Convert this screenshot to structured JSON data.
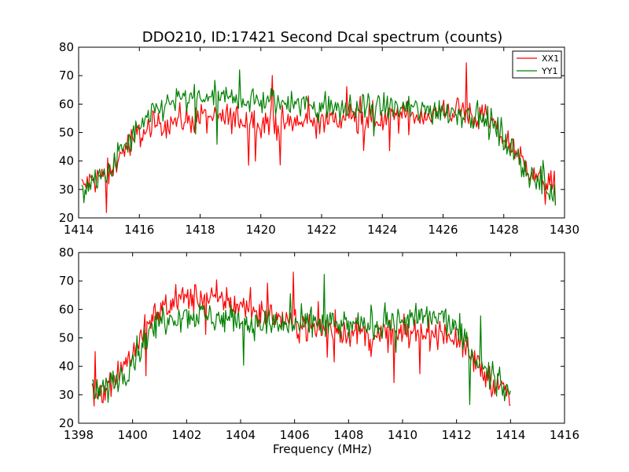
{
  "chart_data": [
    {
      "type": "line",
      "title": "DDO210, ID:17421 Second Dcal spectrum (counts)",
      "xlabel": "",
      "ylabel": "",
      "xlim": [
        1414,
        1430
      ],
      "ylim": [
        20,
        80
      ],
      "xticks": [
        1414,
        1416,
        1418,
        1420,
        1422,
        1424,
        1426,
        1428,
        1430
      ],
      "yticks": [
        20,
        30,
        40,
        50,
        60,
        70,
        80
      ],
      "legend": "top-right",
      "series": [
        {
          "name": "XX1",
          "color": "#ff0000",
          "x": [
            1414.1,
            1414.5,
            1415.0,
            1415.5,
            1416.0,
            1416.5,
            1417.0,
            1418.0,
            1419.0,
            1420.0,
            1421.0,
            1422.0,
            1423.0,
            1424.0,
            1425.0,
            1426.0,
            1426.5,
            1427.0,
            1427.5,
            1428.0,
            1428.5,
            1429.0,
            1429.7
          ],
          "y": [
            31,
            33,
            36,
            44,
            50,
            52,
            54,
            55,
            55,
            54,
            53,
            54,
            55,
            55,
            56,
            57,
            58,
            56,
            54,
            48,
            42,
            35,
            30
          ]
        },
        {
          "name": "YY1",
          "color": "#008000",
          "x": [
            1414.1,
            1414.5,
            1415.0,
            1415.5,
            1416.0,
            1416.5,
            1417.0,
            1418.0,
            1419.0,
            1420.0,
            1421.0,
            1422.0,
            1423.0,
            1424.0,
            1425.0,
            1426.0,
            1426.5,
            1427.0,
            1427.5,
            1428.0,
            1428.5,
            1429.0,
            1429.7
          ],
          "y": [
            30,
            32,
            36,
            45,
            51,
            57,
            61,
            62,
            62,
            61,
            60,
            59,
            58,
            59,
            58,
            58,
            57,
            56,
            54,
            48,
            41,
            33,
            28
          ]
        }
      ]
    },
    {
      "type": "line",
      "title": "",
      "xlabel": "Frequency (MHz)",
      "ylabel": "",
      "xlim": [
        1398,
        1416
      ],
      "ylim": [
        20,
        80
      ],
      "xticks": [
        1398,
        1400,
        1402,
        1404,
        1406,
        1408,
        1410,
        1412,
        1414,
        1416
      ],
      "yticks": [
        20,
        30,
        40,
        50,
        60,
        70,
        80
      ],
      "series": [
        {
          "name": "XX1",
          "color": "#ff0000",
          "x": [
            1398.5,
            1399.0,
            1399.5,
            1400.0,
            1400.5,
            1401.0,
            1401.5,
            1402.0,
            1402.5,
            1403.0,
            1403.5,
            1404.0,
            1404.5,
            1405.0,
            1405.5,
            1406.0,
            1407.0,
            1408.0,
            1409.0,
            1410.0,
            1411.0,
            1411.5,
            1412.0,
            1412.5,
            1413.0,
            1413.5,
            1414.0
          ],
          "y": [
            30,
            33,
            38,
            45,
            53,
            60,
            63,
            64,
            64,
            64,
            63,
            61,
            60,
            58,
            57,
            55,
            53,
            52,
            51,
            51,
            52,
            52,
            50,
            44,
            38,
            33,
            30
          ]
        },
        {
          "name": "YY1",
          "color": "#008000",
          "x": [
            1398.5,
            1399.0,
            1399.5,
            1400.0,
            1400.5,
            1401.0,
            1401.5,
            1402.0,
            1402.5,
            1403.0,
            1403.5,
            1404.0,
            1404.5,
            1405.0,
            1405.5,
            1406.0,
            1407.0,
            1408.0,
            1409.0,
            1410.0,
            1411.0,
            1411.5,
            1412.0,
            1412.5,
            1413.0,
            1413.5,
            1414.0
          ],
          "y": [
            30,
            32,
            36,
            42,
            50,
            56,
            58,
            58,
            58,
            57,
            57,
            56,
            55,
            55,
            54,
            54,
            55,
            54,
            55,
            56,
            57,
            57,
            53,
            46,
            39,
            34,
            31
          ]
        }
      ]
    }
  ]
}
